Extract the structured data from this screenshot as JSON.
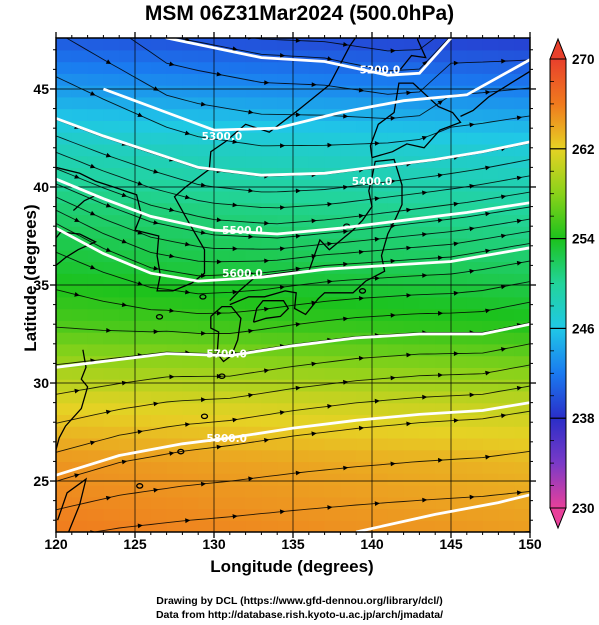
{
  "title": "MSM 06Z31Mar2024 (500.0hPa)",
  "credits": {
    "line1": "Drawing by DCL (https://www.gfd-dennou.org/library/dcl/)",
    "line2": "Data from http://database.rish.kyoto-u.ac.jp/arch/jmadata/"
  },
  "chart_data": {
    "type": "heatmap",
    "title": "MSM 06Z31Mar2024 (500.0hPa)",
    "xlabel": "Longitude (degrees)",
    "ylabel": "Latitude  (degrees)",
    "xlim": [
      120,
      150
    ],
    "ylim": [
      22.4,
      47.6
    ],
    "x_ticks": [
      "120",
      "125",
      "130",
      "135",
      "140",
      "145",
      "150"
    ],
    "y_ticks": [
      "25",
      "30",
      "35",
      "40",
      "45"
    ],
    "colorbar": {
      "min": 230,
      "max": 270,
      "tick_labels": [
        "270",
        "262",
        "254",
        "246",
        "238",
        "230"
      ],
      "stops": [
        {
          "value": 230,
          "color": "#e8409a"
        },
        {
          "value": 234,
          "color": "#7a3ac8"
        },
        {
          "value": 238,
          "color": "#2a2ec8"
        },
        {
          "value": 242,
          "color": "#1a7af0"
        },
        {
          "value": 246,
          "color": "#20c8e6"
        },
        {
          "value": 250,
          "color": "#22d49a"
        },
        {
          "value": 254,
          "color": "#1cc21c"
        },
        {
          "value": 258,
          "color": "#8ad21a"
        },
        {
          "value": 262,
          "color": "#e6d224"
        },
        {
          "value": 266,
          "color": "#f07a1e"
        },
        {
          "value": 270,
          "color": "#e8402c"
        }
      ]
    },
    "temperature_field": {
      "lat_points": [
        22.4,
        26,
        29,
        31,
        33,
        36,
        39,
        42,
        45,
        47.6
      ],
      "values_K": [
        265.2,
        264,
        261,
        258,
        255,
        252.5,
        250.5,
        247.5,
        243,
        239.5
      ],
      "lon_tilt_K_per_deg": -0.05
    },
    "height_contours": [
      {
        "label": "5200.0",
        "label_lon": 140.5,
        "label_lat": 46.0,
        "points": [
          [
            120,
            52.0
          ],
          [
            127,
            47.6
          ],
          [
            133,
            46.6
          ],
          [
            137,
            46.4
          ],
          [
            141,
            45.7
          ],
          [
            143,
            45.8
          ],
          [
            145,
            47.6
          ]
        ]
      },
      {
        "label": "5300.0",
        "label_lon": 130.5,
        "label_lat": 42.6,
        "points": [
          [
            123,
            45.0
          ],
          [
            127,
            43.8
          ],
          [
            130,
            42.9
          ],
          [
            134,
            43.0
          ],
          [
            138,
            43.8
          ],
          [
            142,
            44.4
          ],
          [
            146,
            44.7
          ],
          [
            150,
            46.5
          ]
        ]
      },
      {
        "label": "5400.0",
        "label_lon": 140.0,
        "label_lat": 40.3,
        "points": [
          [
            120,
            43.5
          ],
          [
            123,
            42.6
          ],
          [
            126,
            41.8
          ],
          [
            129,
            41.0
          ],
          [
            133,
            40.6
          ],
          [
            137,
            40.7
          ],
          [
            140,
            41.0
          ],
          [
            144,
            41.4
          ],
          [
            147,
            41.8
          ],
          [
            150,
            42.3
          ]
        ]
      },
      {
        "label": "5500.0",
        "label_lon": 131.8,
        "label_lat": 37.8,
        "points": [
          [
            120,
            40.4
          ],
          [
            123,
            39.4
          ],
          [
            126,
            38.5
          ],
          [
            130,
            37.8
          ],
          [
            134,
            37.6
          ],
          [
            138,
            37.9
          ],
          [
            142,
            38.3
          ],
          [
            146,
            38.7
          ],
          [
            150,
            39.2
          ]
        ]
      },
      {
        "label": "5600.0",
        "label_lon": 131.8,
        "label_lat": 35.6,
        "points": [
          [
            120,
            37.9
          ],
          [
            123,
            36.6
          ],
          [
            126,
            35.6
          ],
          [
            129,
            35.2
          ],
          [
            133,
            35.4
          ],
          [
            137,
            35.8
          ],
          [
            141,
            36.0
          ],
          [
            145,
            36.2
          ],
          [
            150,
            36.9
          ]
        ]
      },
      {
        "label": "5700.0",
        "label_lon": 130.8,
        "label_lat": 31.5,
        "points": [
          [
            120,
            30.8
          ],
          [
            124,
            31.2
          ],
          [
            127,
            31.5
          ],
          [
            131,
            31.4
          ],
          [
            135,
            31.9
          ],
          [
            139,
            32.3
          ],
          [
            143,
            32.5
          ],
          [
            147,
            32.5
          ],
          [
            150,
            33.0
          ]
        ]
      },
      {
        "label": "5800.0",
        "label_lon": 130.8,
        "label_lat": 27.2,
        "points": [
          [
            120,
            25.3
          ],
          [
            124,
            26.3
          ],
          [
            128,
            26.9
          ],
          [
            131,
            27.2
          ],
          [
            135,
            27.7
          ],
          [
            139,
            28.1
          ],
          [
            143,
            28.4
          ],
          [
            147,
            28.6
          ],
          [
            150,
            29.0
          ]
        ]
      },
      {
        "label": "",
        "label_lon": 0,
        "label_lat": 0,
        "points": [
          [
            139,
            22.4
          ],
          [
            144,
            23.3
          ],
          [
            148,
            23.9
          ],
          [
            150,
            24.3
          ]
        ]
      }
    ],
    "wind_streamlines": {
      "direction": "west-to-east",
      "count": 26
    }
  }
}
